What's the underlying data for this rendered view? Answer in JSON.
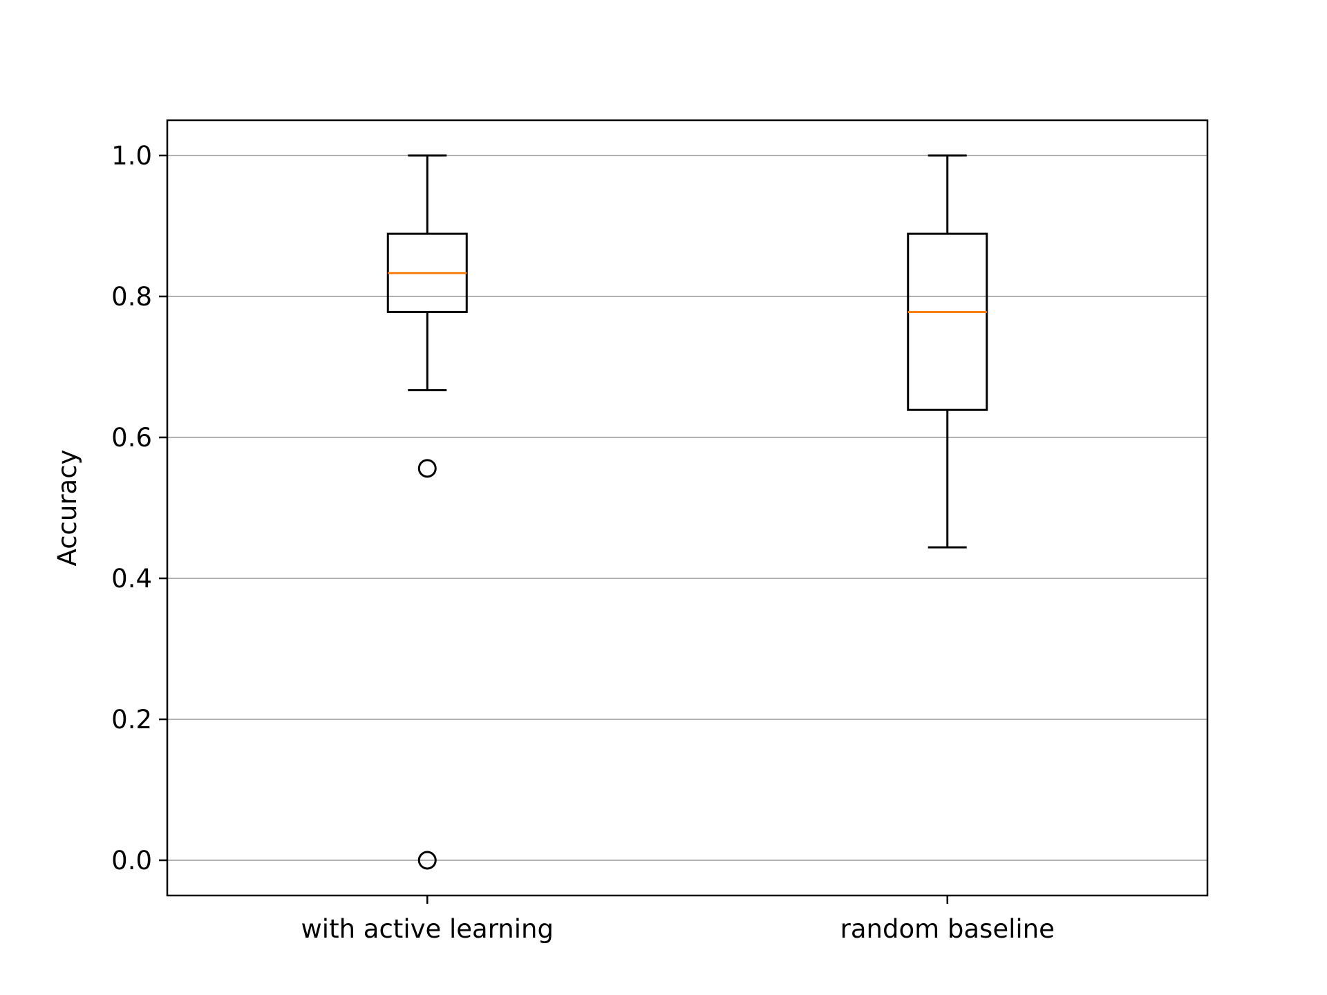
{
  "chart_data": {
    "type": "box",
    "title": "",
    "xlabel": "",
    "ylabel": "Accuracy",
    "ylim": [
      -0.05,
      1.05
    ],
    "yticks": [
      0.0,
      0.2,
      0.4,
      0.6,
      0.8,
      1.0
    ],
    "ytick_labels": [
      "0.0",
      "0.2",
      "0.4",
      "0.6",
      "0.8",
      "1.0"
    ],
    "grid": {
      "y": true,
      "x": false
    },
    "categories": [
      "with active learning",
      "random baseline"
    ],
    "boxes": [
      {
        "category": "with active learning",
        "whisker_low": 0.667,
        "q1": 0.778,
        "median": 0.833,
        "q3": 0.889,
        "whisker_high": 1.0,
        "outliers": [
          0.556,
          0.0
        ]
      },
      {
        "category": "random baseline",
        "whisker_low": 0.444,
        "q1": 0.639,
        "median": 0.778,
        "q3": 0.889,
        "whisker_high": 1.0,
        "outliers": []
      }
    ],
    "colors": {
      "box": "#000000",
      "median": "#ff7f0e",
      "grid": "#b0b0b0",
      "frame": "#000000",
      "outlier": "#000000"
    }
  }
}
